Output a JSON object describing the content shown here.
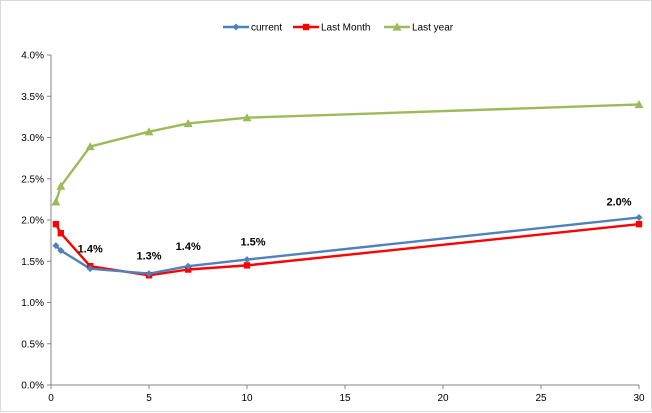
{
  "chart_data": {
    "type": "line",
    "title": "",
    "xlabel": "",
    "ylabel": "",
    "xlim": [
      0,
      30
    ],
    "ylim": [
      0,
      0.04
    ],
    "x_ticks": [
      0,
      5,
      10,
      15,
      20,
      25,
      30
    ],
    "x_tick_labels": [
      "0",
      "5",
      "10",
      "15",
      "20",
      "25",
      "30"
    ],
    "y_ticks": [
      0,
      0.005,
      0.01,
      0.015,
      0.02,
      0.025,
      0.03,
      0.035,
      0.04
    ],
    "y_tick_labels": [
      "0.0%",
      "0.5%",
      "1.0%",
      "1.5%",
      "2.0%",
      "2.5%",
      "3.0%",
      "3.5%",
      "4.0%"
    ],
    "grid": false,
    "legend_position": "top-center",
    "series": [
      {
        "name": "current",
        "color": "#4f81bd",
        "marker": "diamond",
        "x": [
          0.25,
          0.5,
          2,
          5,
          7,
          10,
          30
        ],
        "y": [
          0.0169,
          0.0163,
          0.0141,
          0.0135,
          0.0144,
          0.0152,
          0.0203
        ]
      },
      {
        "name": "Last Month",
        "color": "#ff0000",
        "marker": "square",
        "x": [
          0.25,
          0.5,
          2,
          5,
          7,
          10,
          30
        ],
        "y": [
          0.0195,
          0.0184,
          0.0144,
          0.0133,
          0.014,
          0.0145,
          0.0195
        ]
      },
      {
        "name": "Last year",
        "color": "#9bbb59",
        "marker": "triangle",
        "x": [
          0.25,
          0.5,
          2,
          5,
          7,
          10,
          30
        ],
        "y": [
          0.0222,
          0.0241,
          0.0289,
          0.0307,
          0.0317,
          0.0324,
          0.034
        ]
      }
    ],
    "annotations": [
      {
        "text": "1.4%",
        "series": "current",
        "x": 2
      },
      {
        "text": "1.3%",
        "series": "current",
        "x": 5
      },
      {
        "text": "1.4%",
        "series": "current",
        "x": 7
      },
      {
        "text": "1.5%",
        "series": "current",
        "x": 10
      },
      {
        "text": "2.0%",
        "series": "current",
        "x": 30
      }
    ]
  }
}
